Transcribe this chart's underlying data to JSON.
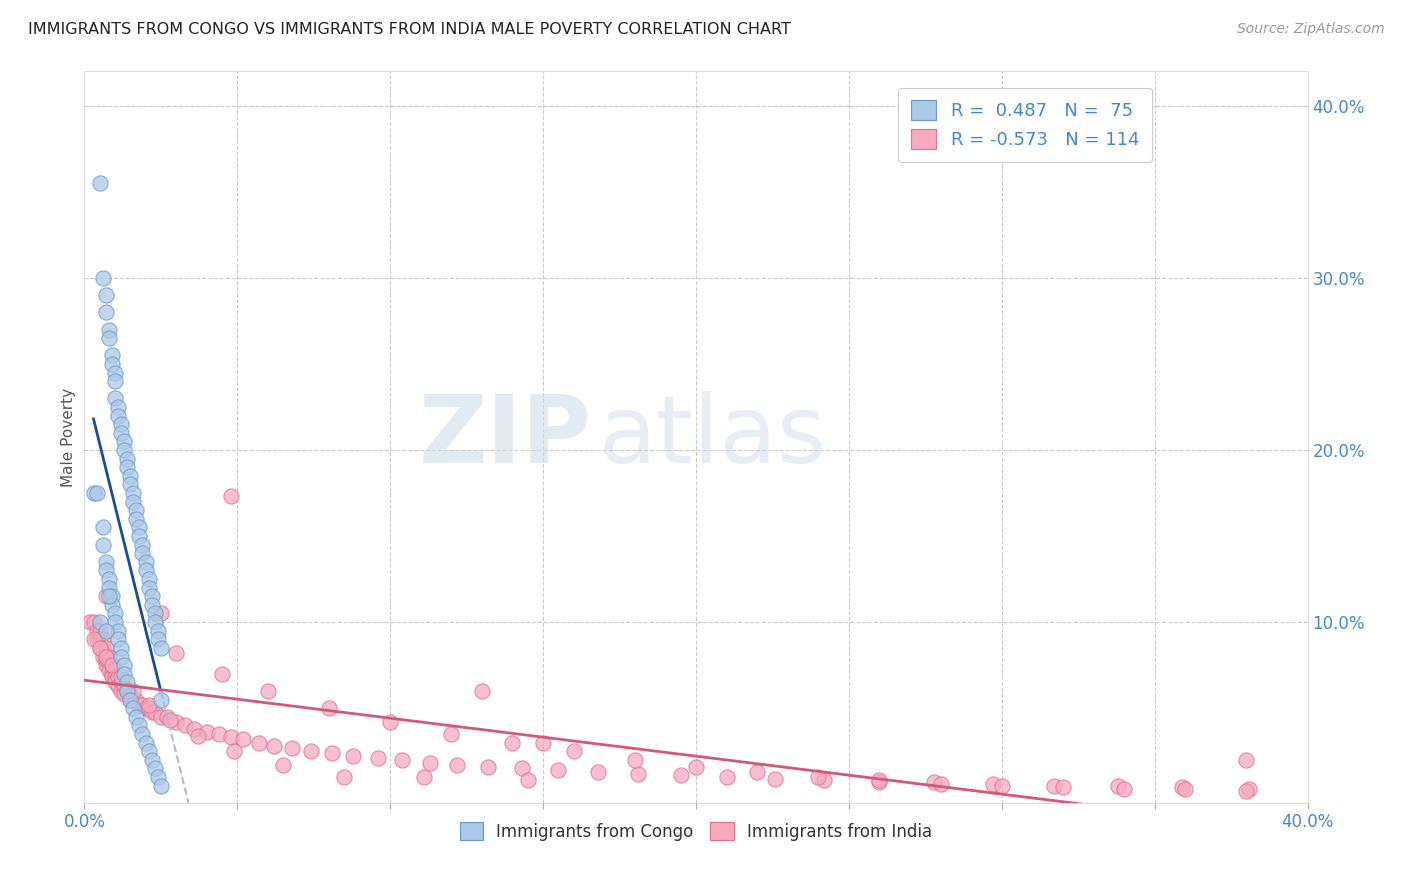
{
  "title": "IMMIGRANTS FROM CONGO VS IMMIGRANTS FROM INDIA MALE POVERTY CORRELATION CHART",
  "source": "Source: ZipAtlas.com",
  "ylabel": "Male Poverty",
  "xlim": [
    0.0,
    0.4
  ],
  "ylim": [
    -0.005,
    0.42
  ],
  "x_ticks": [
    0.0,
    0.05,
    0.1,
    0.15,
    0.2,
    0.25,
    0.3,
    0.35,
    0.4
  ],
  "x_tick_labels": [
    "0.0%",
    "",
    "",
    "",
    "",
    "",
    "",
    "",
    "40.0%"
  ],
  "y_ticks_right": [
    0.1,
    0.2,
    0.3,
    0.4
  ],
  "y_tick_labels_right": [
    "10.0%",
    "20.0%",
    "30.0%",
    "40.0%"
  ],
  "congo_color": "#adc8e8",
  "congo_edge_color": "#6699cc",
  "india_color": "#f5aabf",
  "india_edge_color": "#e07090",
  "congo_line_color": "#1a4a9e",
  "india_line_color": "#d45878",
  "congo_line_dash_color": "#aabbdd",
  "congo_R": 0.487,
  "congo_N": 75,
  "india_R": -0.573,
  "india_N": 114,
  "legend_label_congo": "Immigrants from Congo",
  "legend_label_india": "Immigrants from India",
  "background_color": "#ffffff",
  "grid_color": "#cccccc",
  "tick_label_color": "#4488cc",
  "watermark_text": "ZIP",
  "watermark_text2": "atlas",
  "congo_scatter_x": [
    0.005,
    0.006,
    0.007,
    0.007,
    0.008,
    0.008,
    0.009,
    0.009,
    0.01,
    0.01,
    0.01,
    0.011,
    0.011,
    0.012,
    0.012,
    0.013,
    0.013,
    0.014,
    0.014,
    0.015,
    0.015,
    0.016,
    0.016,
    0.017,
    0.017,
    0.018,
    0.018,
    0.019,
    0.019,
    0.02,
    0.02,
    0.021,
    0.021,
    0.022,
    0.022,
    0.023,
    0.023,
    0.024,
    0.024,
    0.025,
    0.006,
    0.006,
    0.007,
    0.007,
    0.008,
    0.008,
    0.009,
    0.009,
    0.01,
    0.01,
    0.011,
    0.011,
    0.012,
    0.012,
    0.013,
    0.013,
    0.014,
    0.014,
    0.015,
    0.016,
    0.017,
    0.018,
    0.019,
    0.02,
    0.021,
    0.022,
    0.023,
    0.024,
    0.025,
    0.003,
    0.004,
    0.005,
    0.007,
    0.008,
    0.025
  ],
  "congo_scatter_y": [
    0.355,
    0.3,
    0.29,
    0.28,
    0.27,
    0.265,
    0.255,
    0.25,
    0.245,
    0.24,
    0.23,
    0.225,
    0.22,
    0.215,
    0.21,
    0.205,
    0.2,
    0.195,
    0.19,
    0.185,
    0.18,
    0.175,
    0.17,
    0.165,
    0.16,
    0.155,
    0.15,
    0.145,
    0.14,
    0.135,
    0.13,
    0.125,
    0.12,
    0.115,
    0.11,
    0.105,
    0.1,
    0.095,
    0.09,
    0.085,
    0.155,
    0.145,
    0.135,
    0.13,
    0.125,
    0.12,
    0.115,
    0.11,
    0.105,
    0.1,
    0.095,
    0.09,
    0.085,
    0.08,
    0.075,
    0.07,
    0.065,
    0.06,
    0.055,
    0.05,
    0.045,
    0.04,
    0.035,
    0.03,
    0.025,
    0.02,
    0.015,
    0.01,
    0.005,
    0.175,
    0.175,
    0.1,
    0.095,
    0.115,
    0.055
  ],
  "india_scatter_x": [
    0.002,
    0.003,
    0.004,
    0.004,
    0.005,
    0.005,
    0.005,
    0.006,
    0.006,
    0.006,
    0.007,
    0.007,
    0.007,
    0.007,
    0.008,
    0.008,
    0.008,
    0.009,
    0.009,
    0.009,
    0.01,
    0.01,
    0.01,
    0.011,
    0.011,
    0.012,
    0.012,
    0.013,
    0.013,
    0.014,
    0.015,
    0.015,
    0.016,
    0.017,
    0.018,
    0.019,
    0.02,
    0.021,
    0.022,
    0.023,
    0.025,
    0.027,
    0.03,
    0.033,
    0.036,
    0.04,
    0.044,
    0.048,
    0.052,
    0.057,
    0.062,
    0.068,
    0.074,
    0.081,
    0.088,
    0.096,
    0.104,
    0.113,
    0.122,
    0.132,
    0.143,
    0.155,
    0.168,
    0.181,
    0.195,
    0.21,
    0.226,
    0.242,
    0.26,
    0.278,
    0.297,
    0.317,
    0.338,
    0.359,
    0.381,
    0.003,
    0.005,
    0.007,
    0.009,
    0.012,
    0.016,
    0.021,
    0.028,
    0.037,
    0.049,
    0.065,
    0.085,
    0.111,
    0.145,
    0.03,
    0.045,
    0.06,
    0.08,
    0.1,
    0.12,
    0.14,
    0.16,
    0.18,
    0.2,
    0.22,
    0.24,
    0.26,
    0.28,
    0.3,
    0.32,
    0.34,
    0.36,
    0.38,
    0.048,
    0.15,
    0.38,
    0.007,
    0.025,
    0.13
  ],
  "india_scatter_y": [
    0.1,
    0.1,
    0.09,
    0.095,
    0.095,
    0.09,
    0.085,
    0.09,
    0.085,
    0.08,
    0.085,
    0.08,
    0.075,
    0.078,
    0.08,
    0.075,
    0.072,
    0.075,
    0.07,
    0.068,
    0.072,
    0.068,
    0.065,
    0.068,
    0.063,
    0.065,
    0.06,
    0.062,
    0.058,
    0.06,
    0.058,
    0.055,
    0.055,
    0.055,
    0.052,
    0.052,
    0.05,
    0.05,
    0.048,
    0.048,
    0.045,
    0.045,
    0.042,
    0.04,
    0.038,
    0.036,
    0.035,
    0.033,
    0.032,
    0.03,
    0.028,
    0.027,
    0.025,
    0.024,
    0.022,
    0.021,
    0.02,
    0.018,
    0.017,
    0.016,
    0.015,
    0.014,
    0.013,
    0.012,
    0.011,
    0.01,
    0.009,
    0.008,
    0.007,
    0.007,
    0.006,
    0.005,
    0.005,
    0.004,
    0.003,
    0.09,
    0.085,
    0.08,
    0.075,
    0.068,
    0.06,
    0.052,
    0.043,
    0.034,
    0.025,
    0.017,
    0.01,
    0.01,
    0.008,
    0.082,
    0.07,
    0.06,
    0.05,
    0.042,
    0.035,
    0.03,
    0.025,
    0.02,
    0.016,
    0.013,
    0.01,
    0.008,
    0.006,
    0.005,
    0.004,
    0.003,
    0.003,
    0.002,
    0.173,
    0.03,
    0.02,
    0.115,
    0.105,
    0.06
  ]
}
